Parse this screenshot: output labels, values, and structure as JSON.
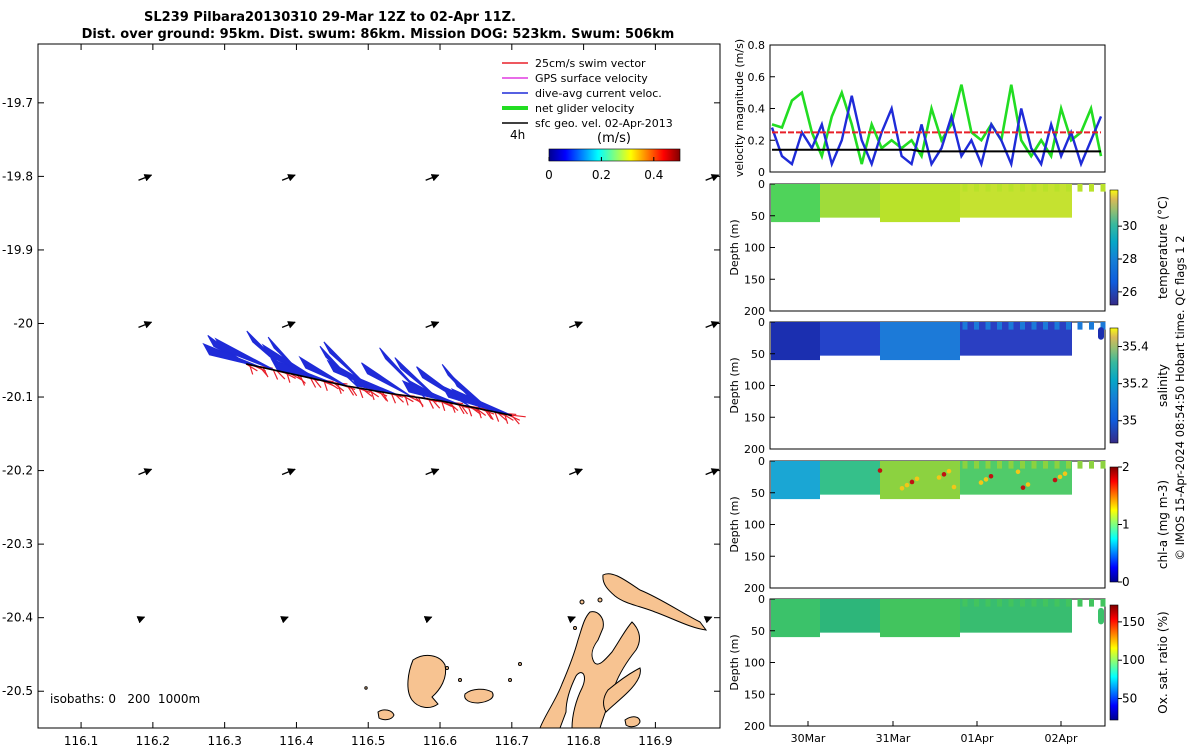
{
  "title": {
    "line1": "SL239 Pilbara20130310 29-Mar 12Z to 02-Apr 11Z.",
    "line2": "Dist. over ground: 95km. Dist. swum: 86km. Mission DOG: 523km. Swum: 506km"
  },
  "chart_data": [
    {
      "id": "map",
      "type": "scatter",
      "title": "",
      "xlim": [
        116.04,
        116.99
      ],
      "ylim": [
        -20.55,
        -19.62
      ],
      "xticks": [
        116.1,
        116.2,
        116.3,
        116.4,
        116.5,
        116.6,
        116.7,
        116.8,
        116.9
      ],
      "yticks": [
        -19.7,
        -19.8,
        -19.9,
        -20,
        -20.1,
        -20.2,
        -20.3,
        -20.4,
        -20.5
      ],
      "xtick_labels": [
        "116.1",
        "116.2",
        "116.3",
        "116.4",
        "116.5",
        "116.6",
        "116.7",
        "116.8",
        "116.9"
      ],
      "ytick_labels": [
        "-19.7",
        "-19.8",
        "-19.9",
        "-20",
        "-20.1",
        "-20.2",
        "-20.3",
        "-20.4",
        "-20.5"
      ],
      "legend": [
        {
          "label": "25cm/s swim vector",
          "color": "#e8202a"
        },
        {
          "label": "GPS surface velocity",
          "color": "#e03ce0"
        },
        {
          "label": "dive-avg current veloc.",
          "color": "#1f2bd8"
        },
        {
          "label": "net glider velocity",
          "color": "#22dd22"
        },
        {
          "label": "sfc geo. vel. 02-Apr-2013",
          "color": "#000000"
        }
      ],
      "colorbar": {
        "label": "(m/s)",
        "annotation": "4h",
        "ticks": [
          "0",
          "0.2",
          "0.4"
        ],
        "range": [
          0,
          0.5
        ]
      },
      "isobaths_label": "isobaths: 0   200  1000m",
      "glider_track": {
        "lon": [
          116.33,
          116.4,
          116.47,
          116.53,
          116.6,
          116.65,
          116.7
        ],
        "lat": [
          -20.055,
          -20.07,
          -20.085,
          -20.095,
          -20.105,
          -20.115,
          -20.125
        ]
      }
    },
    {
      "id": "velocity",
      "type": "line",
      "title": "",
      "ylabel": "velocity magnitude (m/s)",
      "ylim": [
        0,
        0.8
      ],
      "yticks": [
        "0",
        "0.2",
        "0.4",
        "0.6",
        "0.8"
      ],
      "series": [
        {
          "name": "net glider velocity",
          "color": "#22dd22",
          "values": [
            0.3,
            0.28,
            0.45,
            0.5,
            0.25,
            0.1,
            0.35,
            0.5,
            0.3,
            0.05,
            0.3,
            0.15,
            0.2,
            0.15,
            0.2,
            0.1,
            0.4,
            0.2,
            0.3,
            0.55,
            0.25,
            0.2,
            0.3,
            0.2,
            0.55,
            0.2,
            0.1,
            0.2,
            0.1,
            0.4,
            0.2,
            0.25,
            0.4,
            0.1
          ]
        },
        {
          "name": "dive-avg current veloc.",
          "color": "#1f2bd8",
          "values": [
            0.28,
            0.1,
            0.05,
            0.25,
            0.15,
            0.3,
            0.05,
            0.2,
            0.48,
            0.2,
            0.05,
            0.25,
            0.4,
            0.1,
            0.05,
            0.3,
            0.05,
            0.15,
            0.35,
            0.1,
            0.2,
            0.05,
            0.3,
            0.2,
            0.05,
            0.4,
            0.15,
            0.05,
            0.3,
            0.1,
            0.25,
            0.05,
            0.2,
            0.35
          ]
        },
        {
          "name": "25cm/s swim vector",
          "color": "#e8202a",
          "values": [
            0.25,
            0.25,
            0.25,
            0.25,
            0.25,
            0.25,
            0.25,
            0.25,
            0.25,
            0.25,
            0.25,
            0.25,
            0.25,
            0.25,
            0.25,
            0.25,
            0.25,
            0.25,
            0.25,
            0.25,
            0.25,
            0.25,
            0.25,
            0.25,
            0.25,
            0.25,
            0.25,
            0.25,
            0.25,
            0.25,
            0.25,
            0.25,
            0.25,
            0.25
          ]
        },
        {
          "name": "sfc geo. vel. 02-Apr-2013",
          "color": "#000000",
          "values": [
            0.14,
            0.14,
            0.14,
            0.14,
            0.14,
            0.14,
            0.14,
            0.14,
            0.14,
            0.14,
            0.14,
            0.14,
            0.14,
            0.14,
            0.14,
            0.13,
            0.13,
            0.13,
            0.13,
            0.13,
            0.13,
            0.13,
            0.13,
            0.13,
            0.13,
            0.13,
            0.13,
            0.13,
            0.13,
            0.13,
            0.13,
            0.13,
            0.13,
            0.13
          ]
        }
      ]
    },
    {
      "id": "temperature",
      "type": "heatmap",
      "ylabel": "Depth (m)",
      "cbar_label": "temperature (°C)",
      "ylim": [
        200,
        0
      ],
      "yticks": [
        "0",
        "50",
        "100",
        "150",
        "200"
      ],
      "cbar_ticks": [
        "26",
        "28",
        "30"
      ],
      "cbar_range": [
        25.2,
        32.2
      ],
      "value_range": [
        28.5,
        30.6
      ],
      "max_depth": [
        50,
        60
      ]
    },
    {
      "id": "salinity",
      "type": "heatmap",
      "ylabel": "Depth (m)",
      "cbar_label": "salinity",
      "ylim": [
        200,
        0
      ],
      "yticks": [
        "0",
        "50",
        "100",
        "150",
        "200"
      ],
      "cbar_ticks": [
        "35",
        "35.2",
        "35.4"
      ],
      "cbar_range": [
        34.88,
        35.5
      ],
      "value_range": [
        34.9,
        35.2
      ],
      "max_depth": [
        50,
        60
      ]
    },
    {
      "id": "chla",
      "type": "heatmap",
      "ylabel": "Depth (m)",
      "cbar_label": "chl-a (mg m-3)",
      "ylim": [
        200,
        0
      ],
      "yticks": [
        "0",
        "50",
        "100",
        "150",
        "200"
      ],
      "cbar_ticks": [
        "0",
        "1",
        "2"
      ],
      "cbar_range": [
        0,
        2
      ],
      "value_range": [
        0.7,
        1.6
      ],
      "max_depth": [
        50,
        60
      ]
    },
    {
      "id": "oxygen",
      "type": "heatmap",
      "ylabel": "Depth (m)",
      "cbar_label": "Ox. sat. ratio (%)",
      "ylim": [
        200,
        0
      ],
      "yticks": [
        "0",
        "50",
        "100",
        "150",
        "200"
      ],
      "cbar_ticks": [
        "50",
        "100",
        "150"
      ],
      "cbar_range": [
        22,
        172
      ],
      "value_range": [
        95,
        110
      ],
      "max_depth": [
        50,
        60
      ]
    }
  ],
  "time_axis": {
    "ticks": [
      "30Mar",
      "31Mar",
      "01Apr",
      "02Apr"
    ]
  },
  "side_note": "© IMOS 15-Apr-2024 08:54:50 Hobart time. QC flags 1  2",
  "colors": {
    "land": "#f7c391",
    "swim": "#e8202a",
    "current": "#1f2bd8",
    "net": "#22dd22"
  }
}
